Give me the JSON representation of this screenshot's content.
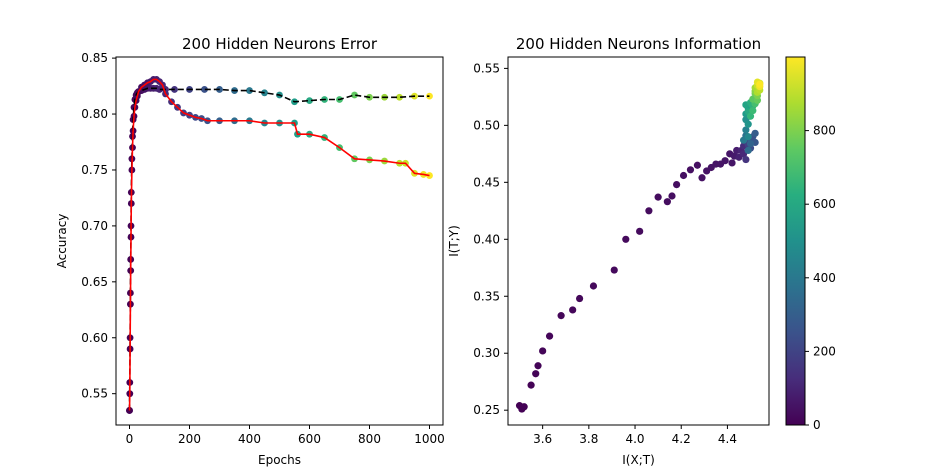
{
  "chart_data": [
    {
      "type": "scatter",
      "title": "200 Hidden Neurons Error",
      "xlabel": "Epochs",
      "ylabel": "Accuracy",
      "xlim": [
        -45,
        1045
      ],
      "ylim": [
        0.522,
        0.851
      ],
      "xticks": [
        0,
        200,
        400,
        600,
        800,
        1000
      ],
      "yticks": [
        0.55,
        0.6,
        0.65,
        0.7,
        0.75,
        0.8,
        0.85
      ],
      "series": [
        {
          "style": "dashed-black-line-with-viridis-markers",
          "x": [
            0,
            1,
            2,
            3,
            4,
            5,
            6,
            8,
            10,
            12,
            15,
            18,
            22,
            26,
            30,
            40,
            50,
            60,
            70,
            80,
            90,
            100,
            120,
            150,
            200,
            250,
            300,
            350,
            400,
            450,
            500,
            550,
            600,
            650,
            700,
            750,
            800,
            850,
            900,
            950,
            1000
          ],
          "y": [
            0.535,
            0.56,
            0.6,
            0.64,
            0.67,
            0.7,
            0.73,
            0.76,
            0.78,
            0.795,
            0.806,
            0.813,
            0.817,
            0.819,
            0.82,
            0.821,
            0.822,
            0.823,
            0.823,
            0.823,
            0.823,
            0.822,
            0.822,
            0.822,
            0.822,
            0.822,
            0.822,
            0.821,
            0.821,
            0.819,
            0.817,
            0.811,
            0.812,
            0.813,
            0.813,
            0.817,
            0.815,
            0.815,
            0.815,
            0.816,
            0.816
          ]
        },
        {
          "style": "red-line-with-viridis-markers",
          "x": [
            0,
            1,
            2,
            3,
            4,
            5,
            6,
            8,
            10,
            12,
            15,
            18,
            22,
            26,
            30,
            40,
            50,
            60,
            70,
            80,
            90,
            100,
            110,
            120,
            140,
            160,
            180,
            200,
            220,
            240,
            260,
            300,
            350,
            400,
            450,
            500,
            550,
            560,
            600,
            650,
            700,
            750,
            800,
            850,
            900,
            920,
            950,
            980,
            1000
          ],
          "y": [
            0.535,
            0.55,
            0.59,
            0.63,
            0.66,
            0.69,
            0.72,
            0.75,
            0.77,
            0.785,
            0.798,
            0.806,
            0.812,
            0.816,
            0.82,
            0.824,
            0.826,
            0.828,
            0.829,
            0.831,
            0.831,
            0.829,
            0.826,
            0.818,
            0.811,
            0.806,
            0.801,
            0.799,
            0.797,
            0.796,
            0.794,
            0.794,
            0.794,
            0.794,
            0.792,
            0.792,
            0.792,
            0.782,
            0.782,
            0.779,
            0.77,
            0.76,
            0.759,
            0.758,
            0.756,
            0.756,
            0.747,
            0.746,
            0.745
          ]
        }
      ]
    },
    {
      "type": "scatter",
      "title": "200 Hidden Neurons Information",
      "xlabel": "I(X;T)",
      "ylabel": "I(T;Y)",
      "xlim": [
        3.45,
        4.58
      ],
      "ylim": [
        0.237,
        0.56
      ],
      "xticks": [
        3.6,
        3.8,
        4.0,
        4.2,
        4.4
      ],
      "xtick_labels": [
        "3.6",
        "3.8",
        "4.0",
        "4.2",
        "4.4"
      ],
      "yticks": [
        0.25,
        0.3,
        0.35,
        0.4,
        0.45,
        0.5,
        0.55
      ],
      "colorbar": {
        "colormap": "viridis",
        "range": [
          0,
          1000
        ],
        "ticks": [
          0,
          200,
          400,
          600,
          800
        ]
      },
      "points": [
        [
          3.5,
          0.254,
          0
        ],
        [
          3.51,
          0.251,
          2
        ],
        [
          3.52,
          0.253,
          4
        ],
        [
          3.55,
          0.272,
          6
        ],
        [
          3.57,
          0.282,
          8
        ],
        [
          3.58,
          0.289,
          10
        ],
        [
          3.6,
          0.302,
          12
        ],
        [
          3.63,
          0.315,
          14
        ],
        [
          3.68,
          0.333,
          16
        ],
        [
          3.73,
          0.338,
          18
        ],
        [
          3.76,
          0.348,
          20
        ],
        [
          3.82,
          0.359,
          22
        ],
        [
          3.91,
          0.373,
          24
        ],
        [
          3.96,
          0.4,
          26
        ],
        [
          4.02,
          0.407,
          28
        ],
        [
          4.06,
          0.425,
          30
        ],
        [
          4.1,
          0.437,
          32
        ],
        [
          4.14,
          0.433,
          34
        ],
        [
          4.16,
          0.438,
          36
        ],
        [
          4.18,
          0.448,
          38
        ],
        [
          4.21,
          0.456,
          40
        ],
        [
          4.24,
          0.461,
          42
        ],
        [
          4.27,
          0.465,
          44
        ],
        [
          4.29,
          0.454,
          46
        ],
        [
          4.31,
          0.46,
          48
        ],
        [
          4.33,
          0.463,
          50
        ],
        [
          4.35,
          0.466,
          52
        ],
        [
          4.37,
          0.466,
          54
        ],
        [
          4.39,
          0.469,
          56
        ],
        [
          4.41,
          0.475,
          58
        ],
        [
          4.42,
          0.467,
          60
        ],
        [
          4.43,
          0.473,
          70
        ],
        [
          4.44,
          0.478,
          80
        ],
        [
          4.45,
          0.472,
          90
        ],
        [
          4.46,
          0.478,
          100
        ],
        [
          4.47,
          0.475,
          110
        ],
        [
          4.47,
          0.482,
          130
        ],
        [
          4.48,
          0.47,
          150
        ],
        [
          4.48,
          0.486,
          170
        ],
        [
          4.49,
          0.483,
          190
        ],
        [
          4.5,
          0.487,
          210
        ],
        [
          4.5,
          0.48,
          230
        ],
        [
          4.51,
          0.49,
          250
        ],
        [
          4.52,
          0.485,
          270
        ],
        [
          4.52,
          0.493,
          290
        ],
        [
          4.5,
          0.484,
          320
        ],
        [
          4.49,
          0.478,
          350
        ],
        [
          4.48,
          0.491,
          380
        ],
        [
          4.47,
          0.487,
          410
        ],
        [
          4.48,
          0.496,
          440
        ],
        [
          4.49,
          0.49,
          470
        ],
        [
          4.48,
          0.505,
          500
        ],
        [
          4.49,
          0.501,
          520
        ],
        [
          4.48,
          0.51,
          540
        ],
        [
          4.49,
          0.515,
          560
        ],
        [
          4.48,
          0.518,
          580
        ],
        [
          4.49,
          0.512,
          600
        ],
        [
          4.5,
          0.52,
          620
        ],
        [
          4.51,
          0.517,
          640
        ],
        [
          4.5,
          0.508,
          660
        ],
        [
          4.51,
          0.513,
          680
        ],
        [
          4.52,
          0.519,
          700
        ],
        [
          4.52,
          0.524,
          720
        ],
        [
          4.51,
          0.523,
          740
        ],
        [
          4.53,
          0.522,
          760
        ],
        [
          4.52,
          0.528,
          780
        ],
        [
          4.53,
          0.526,
          800
        ],
        [
          4.52,
          0.53,
          820
        ],
        [
          4.53,
          0.532,
          840
        ],
        [
          4.52,
          0.533,
          860
        ],
        [
          4.53,
          0.529,
          880
        ],
        [
          4.54,
          0.531,
          900
        ],
        [
          4.53,
          0.535,
          920
        ],
        [
          4.54,
          0.537,
          940
        ],
        [
          4.53,
          0.538,
          960
        ],
        [
          4.54,
          0.534,
          980
        ],
        [
          4.54,
          0.536,
          999
        ]
      ]
    }
  ]
}
